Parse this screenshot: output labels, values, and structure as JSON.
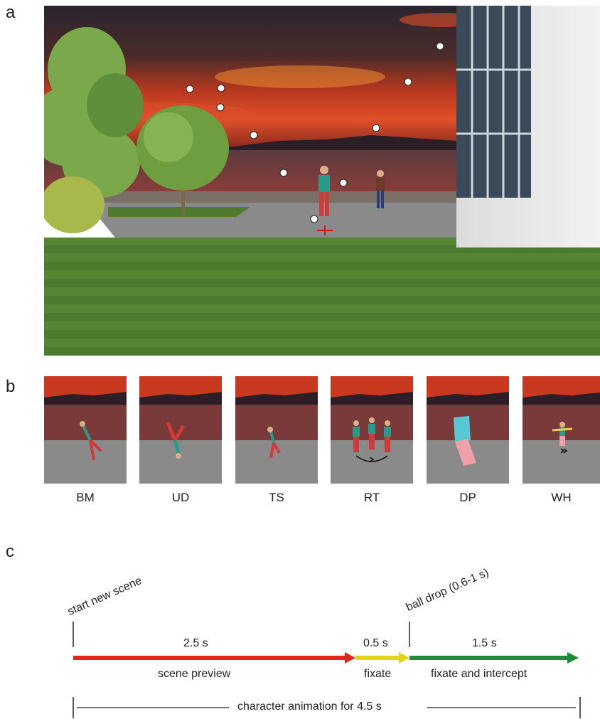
{
  "panels": {
    "a": "a",
    "b": "b",
    "c": "c"
  },
  "conditions": [
    {
      "label": "BM"
    },
    {
      "label": "UD"
    },
    {
      "label": "TS"
    },
    {
      "label": "RT"
    },
    {
      "label": "DP"
    },
    {
      "label": "WH"
    }
  ],
  "timeline": {
    "start_label": "start new scene",
    "drop_label": "ball drop (0.6-1 s)",
    "segments": [
      {
        "duration": "2.5 s",
        "caption": "scene preview",
        "color": "#e0261b"
      },
      {
        "duration": "0.5 s",
        "caption": "fixate",
        "color": "#e3d31f"
      },
      {
        "duration": "1.5 s",
        "caption": "fixate and intercept",
        "color": "#1f8a37"
      }
    ],
    "animation_label": "character animation for 4.5 s"
  },
  "colors": {
    "sky_dark": "#2a2430",
    "sky_glow": "#d9472a",
    "grass": "#4f7a2f",
    "pavement": "#8a8a8a"
  }
}
